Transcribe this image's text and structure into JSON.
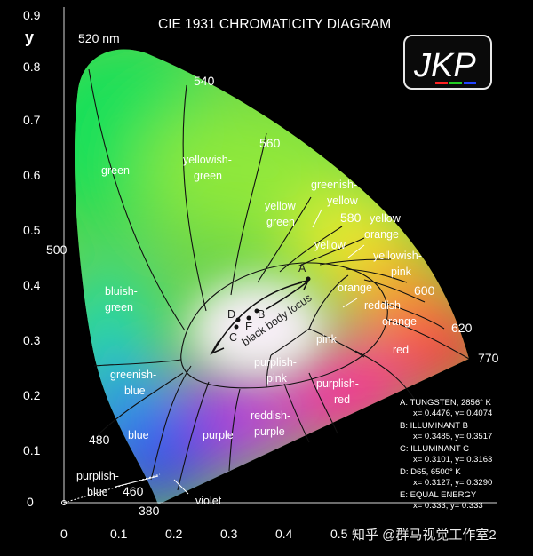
{
  "title": "CIE 1931 CHROMATICITY DIAGRAM",
  "axis": {
    "y_label": "y",
    "y_ticks": [
      "0.9",
      "0.8",
      "0.7",
      "0.6",
      "0.5",
      "0.4",
      "0.3",
      "0.2",
      "0.1",
      "0"
    ],
    "x_ticks": [
      "0",
      "0.1",
      "0.2",
      "0.3",
      "0.4",
      "0.5"
    ]
  },
  "logo_text": "JKP",
  "wavelengths": {
    "w520": "520 nm",
    "w540": "540",
    "w560": "560",
    "w580": "580",
    "w600": "600",
    "w620": "620",
    "w770": "770",
    "w500": "500",
    "w480": "480",
    "w460": "460",
    "w380": "380"
  },
  "regions": {
    "green": "green",
    "yellowish_green_1": "yellowish-",
    "yellowish_green_2": "green",
    "yellow_green_1": "yellow",
    "yellow_green_2": "green",
    "greenish_yellow_1": "greenish-",
    "greenish_yellow_2": "yellow",
    "yellow_orange_1": "yellow",
    "yellow_orange_2": "orange",
    "yellow": "yellow",
    "yellowish_pink_1": "yellowish-",
    "yellowish_pink_2": "pink",
    "orange": "orange",
    "reddish_orange_1": "reddish-",
    "reddish_orange_2": "orange",
    "red": "red",
    "pink": "pink",
    "purplish_pink_1": "purplish-",
    "purplish_pink_2": "pink",
    "purplish_red_1": "purplish-",
    "purplish_red_2": "red",
    "reddish_purple_1": "reddish-",
    "reddish_purple_2": "purple",
    "purple": "purple",
    "bluish_green_1": "bluish-",
    "bluish_green_2": "green",
    "greenish_blue_1": "greenish-",
    "greenish_blue_2": "blue",
    "blue": "blue",
    "purplish_blue_1": "purplish-",
    "purplish_blue_2": "blue",
    "violet": "violet"
  },
  "locus": {
    "label": "black body locus",
    "points": {
      "a": "A",
      "b": "B",
      "c": "C",
      "d": "D",
      "e": "E"
    }
  },
  "legend": {
    "a_title": "A:  TUNGSTEN, 2856° K",
    "a_coords": "x= 0.4476, y= 0.4074",
    "b_title": "B:  ILLUMINANT B",
    "b_coords": "x= 0.3485, y= 0.3517",
    "c_title": "C:  ILLUMINANT C",
    "c_coords": "x= 0.3101, y= 0.3163",
    "d_title": "D:  D65, 6500° K",
    "d_coords": "x= 0.3127, y= 0.3290",
    "e_title": "E:  EQUAL ENERGY",
    "e_coords": "x= 0.333, y= 0.333"
  },
  "watermark": "知乎 @群马视觉工作室2",
  "colors": {
    "background": "#000000",
    "green": "#1fd13a",
    "yellow": "#f4ee2a",
    "red": "#ff1e3c",
    "blue": "#2a2ef0",
    "white_point": "#f4f0f4"
  }
}
